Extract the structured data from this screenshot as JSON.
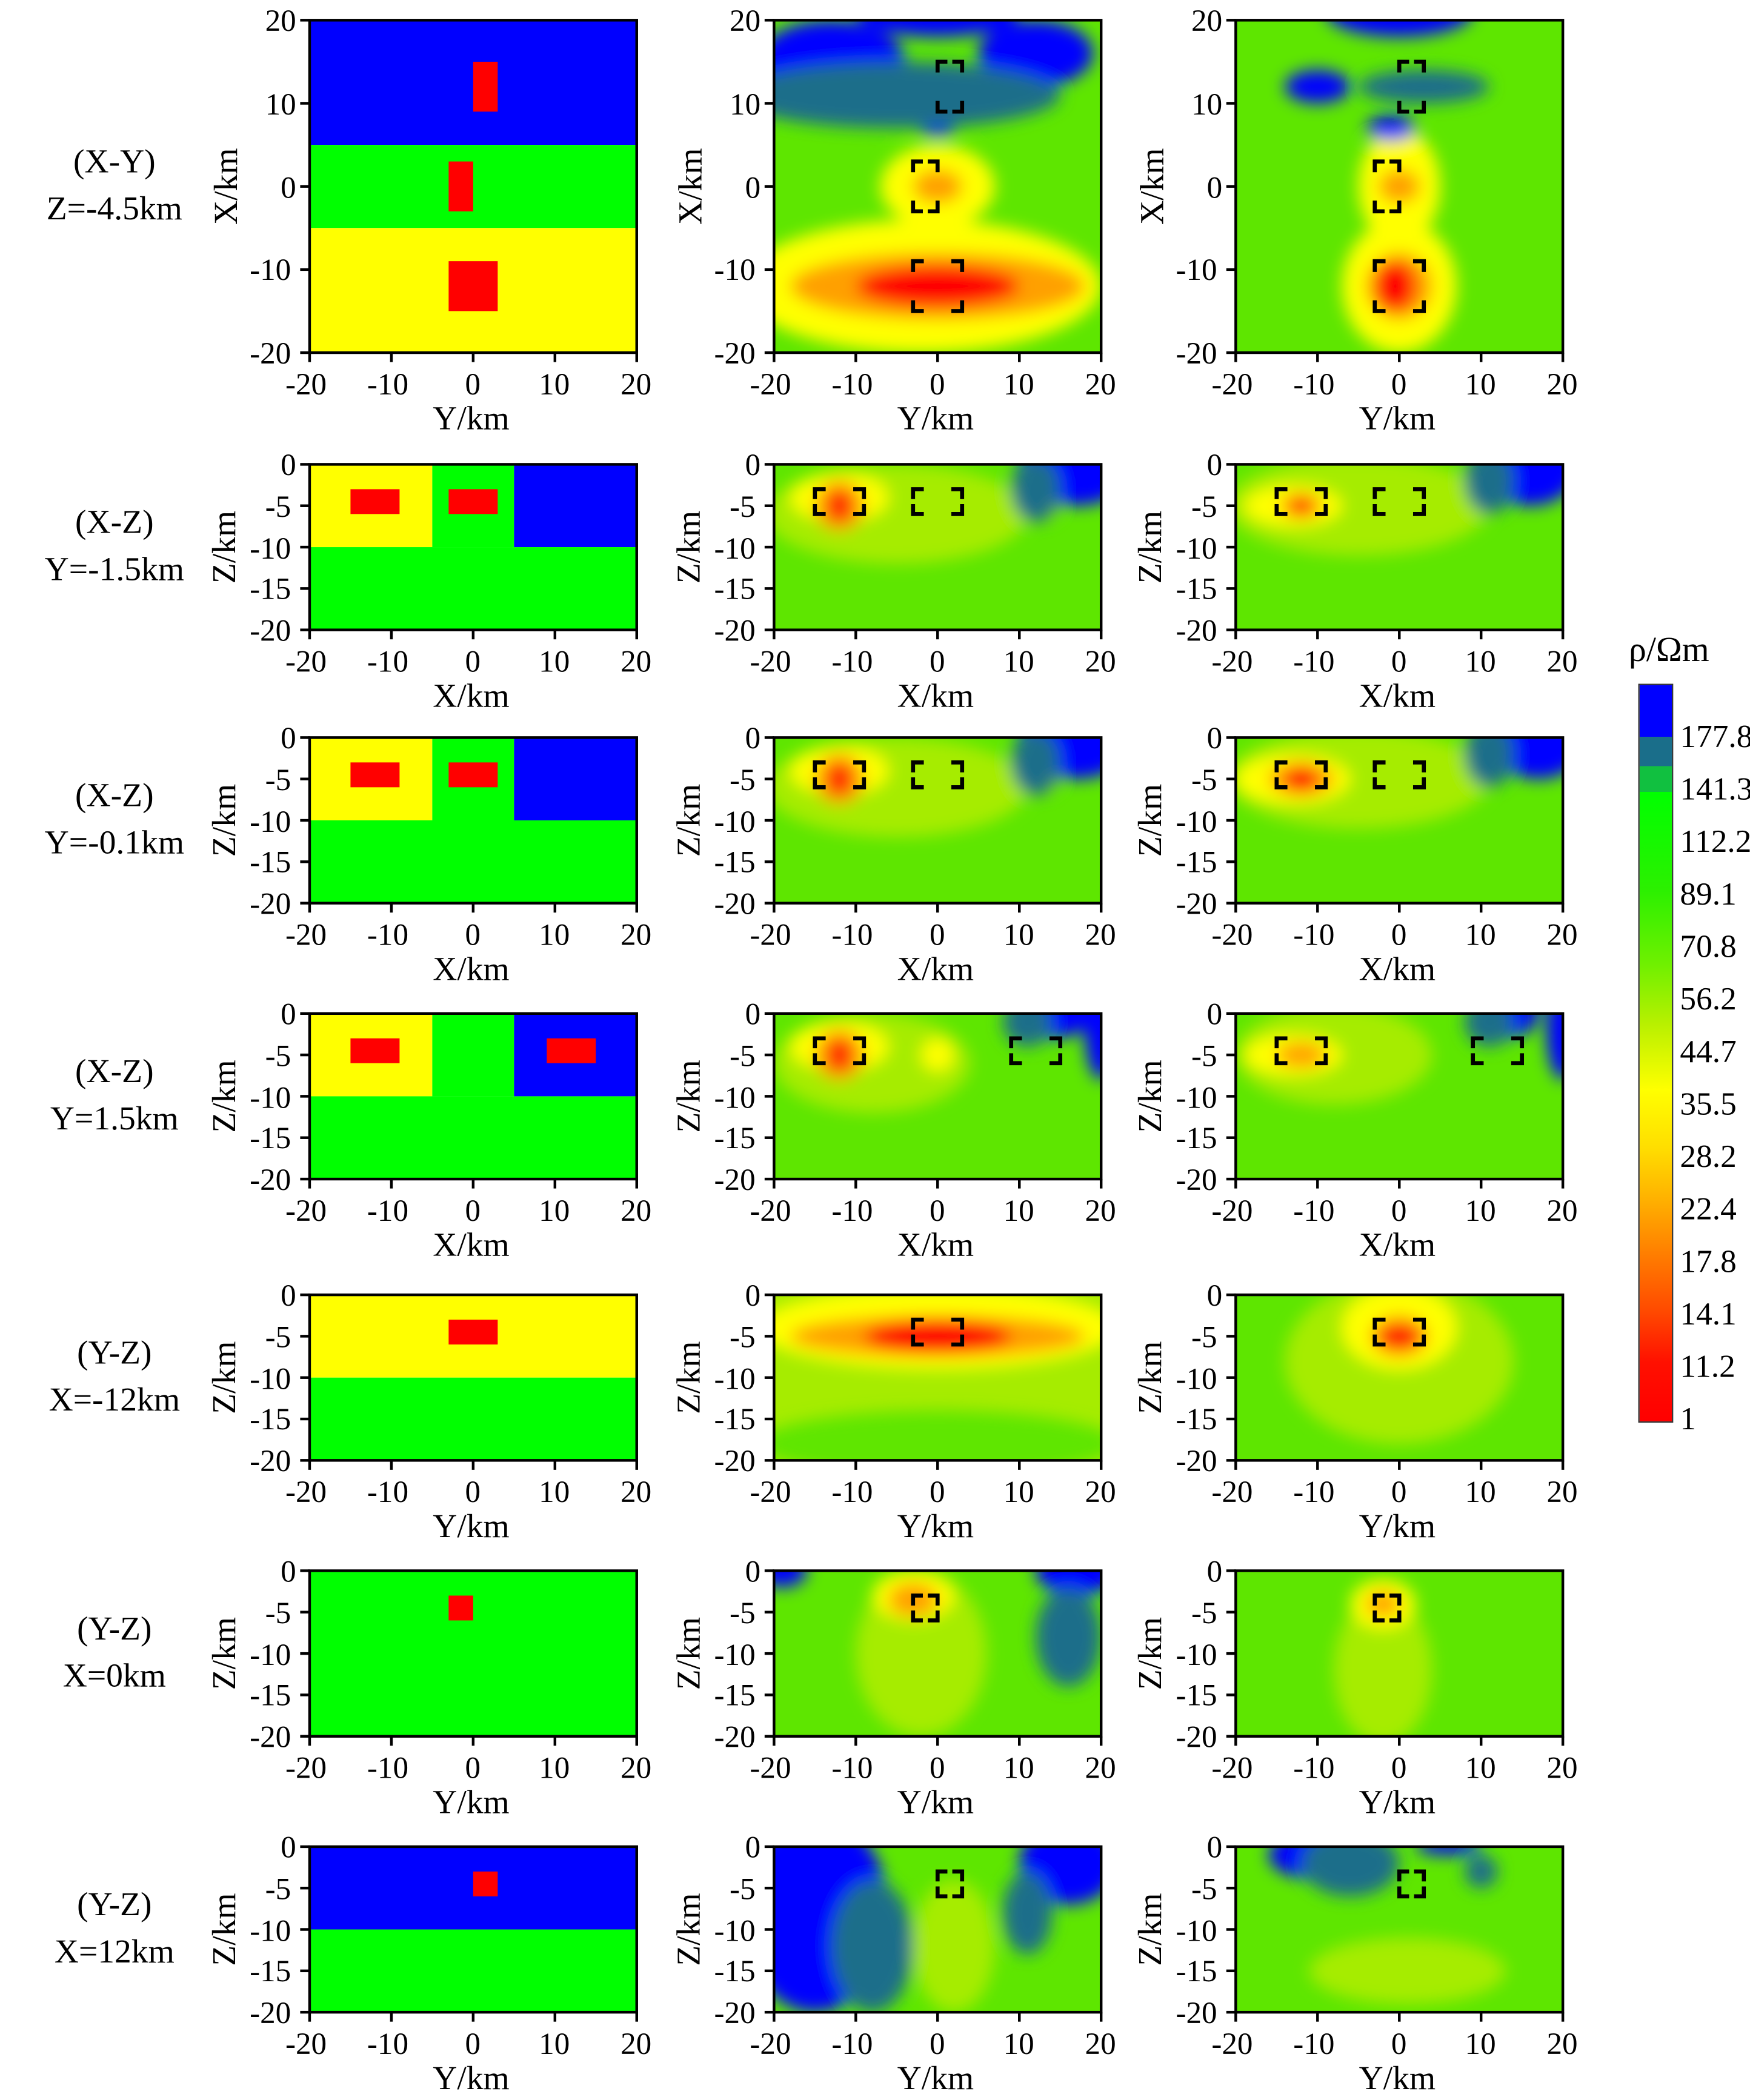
{
  "chart_data": {
    "type": "heatmap",
    "colorbar": {
      "title": "ρ/Ωm",
      "labels": [
        "177.8",
        "141.3",
        "112.2",
        "89.1",
        "70.8",
        "56.2",
        "44.7",
        "35.5",
        "28.2",
        "22.4",
        "17.8",
        "14.1",
        "11.2",
        "1"
      ]
    },
    "colors": {
      "blue": "#0000ff",
      "teal": "#1a6e8a",
      "green": "#00ff00",
      "invgreen": "#5ee600",
      "ygreen": "#a6ec00",
      "yellow": "#ffff00",
      "orange": "#ffa000",
      "red": "#ff0000"
    },
    "xticks": [
      "-20",
      "-10",
      "0",
      "10",
      "20"
    ],
    "yticks_plan": [
      "20",
      "10",
      "0",
      "-10",
      "-20"
    ],
    "yticks_depth": [
      "0",
      "-5",
      "-10",
      "-15",
      "-20"
    ],
    "rows": [
      {
        "label1": "(X-Y)",
        "label2": "Z=-4.5km",
        "kind": "plan",
        "xlabel": "Y/km",
        "ylabel": "X/km",
        "model": {
          "layers": [
            [
              "blue",
              5,
              20
            ],
            [
              "green",
              -5,
              5
            ],
            [
              "yellow",
              -20,
              -5
            ]
          ],
          "blocks": [
            [
              0,
              3,
              9,
              15
            ],
            [
              -3,
              0,
              -3,
              3
            ],
            [
              -3,
              3,
              -15,
              -9
            ]
          ]
        },
        "anomalies": [
          [
            0,
            3,
            9,
            15
          ],
          [
            -3,
            0,
            -3,
            3
          ],
          [
            -3,
            3,
            -15,
            -9
          ]
        ],
        "inv1": {
          "bg": "invgreen",
          "blobs": [
            [
              "yellow",
              -2,
              -12,
              22,
              8
            ],
            [
              "orange",
              0,
              -12,
              18,
              4
            ],
            [
              "red",
              0,
              -12,
              10,
              2.5
            ],
            [
              "yellow",
              0,
              0,
              7,
              5
            ],
            [
              "orange",
              0,
              0,
              3,
              2
            ],
            [
              "blue",
              -13,
              15,
              9,
              5
            ],
            [
              "blue",
              12,
              16,
              7,
              4
            ],
            [
              "blue",
              0,
              21,
              10,
              3
            ],
            [
              "blue",
              0,
              7,
              2,
              1
            ],
            [
              "teal",
              -5,
              11,
              20,
              4
            ]
          ]
        },
        "inv2": {
          "bg": "invgreen",
          "blobs": [
            [
              "yellow",
              0,
              -12,
              7,
              8
            ],
            [
              "yellow",
              0,
              0,
              5,
              7
            ],
            [
              "orange",
              0,
              -12,
              4,
              4
            ],
            [
              "red",
              -0.5,
              -12,
              2.5,
              3
            ],
            [
              "orange",
              0,
              0,
              2.5,
              2
            ],
            [
              "blue",
              0,
              21,
              9,
              3
            ],
            [
              "blue",
              -10,
              12,
              4,
              2
            ],
            [
              "blue",
              -1,
              7,
              3,
              1.5
            ],
            [
              "teal",
              3,
              12,
              8,
              2
            ]
          ]
        }
      },
      {
        "label1": "(X-Z)",
        "label2": "Y=-1.5km",
        "kind": "depth",
        "xlabel": "X/km",
        "ylabel": "Z/km",
        "model": {
          "layers": [
            [
              "yellow",
              -20,
              -5,
              0,
              -10
            ],
            [
              "green",
              -5,
              5,
              0,
              -10
            ],
            [
              "blue",
              5,
              20,
              0,
              -10
            ],
            [
              "green",
              -20,
              20,
              -10,
              -20
            ]
          ],
          "blocks": [
            [
              -15,
              -9,
              -3,
              -6
            ],
            [
              -3,
              3,
              -3,
              -6
            ]
          ]
        },
        "anomalies": [
          [
            -15,
            -9,
            -3,
            -6
          ],
          [
            -3,
            3,
            -3,
            -6
          ]
        ],
        "inv1": {
          "bg": "invgreen",
          "blobs": [
            [
              "ygreen",
              -5,
              -6,
              16,
              6
            ],
            [
              "yellow",
              -12,
              -4,
              6,
              3
            ],
            [
              "orange",
              -12,
              -5,
              3,
              3
            ],
            [
              "red",
              -12,
              -5,
              1.5,
              2
            ],
            [
              "ygreen",
              12,
              -4,
              3,
              3
            ],
            [
              "blue",
              17,
              0,
              7,
              5
            ],
            [
              "teal",
              12,
              -3,
              3,
              4
            ]
          ]
        },
        "inv2": {
          "bg": "invgreen",
          "blobs": [
            [
              "ygreen",
              -5,
              -5,
              16,
              6
            ],
            [
              "yellow",
              -13,
              -5,
              6,
              2.5
            ],
            [
              "orange",
              -12,
              -5,
              2.5,
              1.5
            ],
            [
              "red",
              -12,
              -5,
              1.5,
              1
            ],
            [
              "blue",
              16,
              0,
              6,
              5
            ],
            [
              "teal",
              11,
              -2,
              3,
              4
            ]
          ]
        }
      },
      {
        "label1": "(X-Z)",
        "label2": "Y=-0.1km",
        "kind": "depth",
        "xlabel": "X/km",
        "ylabel": "Z/km",
        "model": {
          "layers": [
            [
              "yellow",
              -20,
              -5,
              0,
              -10
            ],
            [
              "green",
              -5,
              5,
              0,
              -10
            ],
            [
              "blue",
              5,
              20,
              0,
              -10
            ],
            [
              "green",
              -20,
              20,
              -10,
              -20
            ]
          ],
          "blocks": [
            [
              -15,
              -9,
              -3,
              -6
            ],
            [
              -3,
              3,
              -3,
              -6
            ]
          ]
        },
        "anomalies": [
          [
            -15,
            -9,
            -3,
            -6
          ],
          [
            -3,
            3,
            -3,
            -6
          ]
        ],
        "inv1": {
          "bg": "invgreen",
          "blobs": [
            [
              "ygreen",
              -5,
              -6,
              16,
              6
            ],
            [
              "yellow",
              -12,
              -4,
              6,
              3
            ],
            [
              "orange",
              -12,
              -5,
              3,
              3
            ],
            [
              "red",
              -12,
              -5,
              1.5,
              2
            ],
            [
              "ygreen",
              12,
              -4,
              3,
              3
            ],
            [
              "blue",
              17,
              0,
              7,
              5
            ],
            [
              "teal",
              12,
              -3,
              3,
              4
            ]
          ]
        },
        "inv2": {
          "bg": "invgreen",
          "blobs": [
            [
              "ygreen",
              -5,
              -5,
              16,
              6
            ],
            [
              "yellow",
              -13,
              -5,
              7,
              3
            ],
            [
              "orange",
              -12,
              -5,
              4,
              2
            ],
            [
              "red",
              -12,
              -5,
              2,
              1.5
            ],
            [
              "blue",
              17,
              0,
              6,
              5
            ],
            [
              "teal",
              11,
              -2,
              3,
              4
            ]
          ]
        }
      },
      {
        "label1": "(X-Z)",
        "label2": "Y=1.5km",
        "kind": "depth",
        "xlabel": "X/km",
        "ylabel": "Z/km",
        "model": {
          "layers": [
            [
              "yellow",
              -20,
              -5,
              0,
              -10
            ],
            [
              "green",
              -5,
              5,
              0,
              -10
            ],
            [
              "blue",
              5,
              20,
              0,
              -10
            ],
            [
              "green",
              -20,
              20,
              -10,
              -20
            ]
          ],
          "blocks": [
            [
              -15,
              -9,
              -3,
              -6
            ],
            [
              9,
              15,
              -3,
              -6
            ]
          ]
        },
        "anomalies": [
          [
            -15,
            -9,
            -3,
            -6
          ],
          [
            9,
            15,
            -3,
            -6
          ]
        ],
        "inv1": {
          "bg": "invgreen",
          "blobs": [
            [
              "ygreen",
              -8,
              -6,
              12,
              6
            ],
            [
              "yellow",
              -12,
              -4,
              6,
              3
            ],
            [
              "orange",
              -12,
              -5,
              3,
              3
            ],
            [
              "red",
              -12,
              -5,
              1.5,
              2
            ],
            [
              "yellow",
              0,
              -5,
              2,
              2
            ],
            [
              "blue",
              14,
              0,
              5,
              3
            ],
            [
              "blue",
              20,
              -2,
              2,
              6
            ],
            [
              "teal",
              11,
              -1,
              3,
              3
            ]
          ]
        },
        "inv2": {
          "bg": "invgreen",
          "blobs": [
            [
              "ygreen",
              -8,
              -5,
              12,
              6
            ],
            [
              "yellow",
              -13,
              -5,
              6,
              2.5
            ],
            [
              "orange",
              -12,
              -5,
              3,
              1.5
            ],
            [
              "blue",
              13,
              0,
              4,
              3
            ],
            [
              "blue",
              20,
              -2,
              2,
              6
            ],
            [
              "teal",
              11,
              -1,
              3,
              3
            ]
          ]
        }
      },
      {
        "label1": "(Y-Z)",
        "label2": "X=-12km",
        "kind": "depth",
        "xlabel": "Y/km",
        "ylabel": "Z/km",
        "model": {
          "layers": [
            [
              "yellow",
              -20,
              20,
              0,
              -10
            ],
            [
              "green",
              -20,
              20,
              -10,
              -20
            ]
          ],
          "blocks": [
            [
              -3,
              3,
              -3,
              -6
            ]
          ]
        },
        "anomalies": [
          [
            -3,
            3,
            -3,
            -6
          ]
        ],
        "inv1": {
          "bg": "ygreen",
          "blobs": [
            [
              "yellow",
              0,
              -4,
              22,
              5
            ],
            [
              "orange",
              0,
              -5,
              18,
              2.5
            ],
            [
              "red",
              0,
              -5,
              9,
              2
            ],
            [
              "invgreen",
              0,
              -18,
              22,
              4
            ]
          ]
        },
        "inv2": {
          "bg": "invgreen",
          "blobs": [
            [
              "ygreen",
              0,
              -8,
              14,
              10
            ],
            [
              "yellow",
              0,
              -4,
              7,
              5
            ],
            [
              "orange",
              0,
              -5,
              3.5,
              2.5
            ],
            [
              "red",
              0,
              -5,
              2.5,
              1.5
            ]
          ]
        }
      },
      {
        "label1": "(Y-Z)",
        "label2": "X=0km",
        "kind": "depth",
        "xlabel": "Y/km",
        "ylabel": "Z/km",
        "model": {
          "layers": [
            [
              "green",
              -20,
              20,
              0,
              -20
            ]
          ],
          "blocks": [
            [
              -3,
              0,
              -3,
              -6
            ]
          ]
        },
        "anomalies": [
          [
            -3,
            0,
            -3,
            -6
          ]
        ],
        "inv1": {
          "bg": "invgreen",
          "blobs": [
            [
              "ygreen",
              -2,
              -10,
              8,
              10
            ],
            [
              "yellow",
              -3,
              -3,
              5,
              3
            ],
            [
              "orange",
              -3,
              -3.5,
              3,
              2
            ],
            [
              "blue",
              -19,
              0,
              3,
              2
            ],
            [
              "blue",
              17,
              0,
              5,
              3
            ],
            [
              "teal",
              16,
              -8,
              4,
              6
            ]
          ]
        },
        "inv2": {
          "bg": "invgreen",
          "blobs": [
            [
              "ygreen",
              -2,
              -12,
              6,
              9
            ],
            [
              "yellow",
              -2,
              -4,
              4,
              3
            ],
            [
              "orange",
              -2,
              -4,
              2,
              1.5
            ]
          ]
        }
      },
      {
        "label1": "(Y-Z)",
        "label2": "X=12km",
        "kind": "depth",
        "xlabel": "Y/km",
        "ylabel": "Z/km",
        "model": {
          "layers": [
            [
              "blue",
              -20,
              20,
              0,
              -10
            ],
            [
              "green",
              -20,
              20,
              -10,
              -20
            ]
          ],
          "blocks": [
            [
              0,
              3,
              -3,
              -6
            ]
          ]
        },
        "anomalies": [
          [
            0,
            3,
            -3,
            -6
          ]
        ],
        "inv1": {
          "bg": "invgreen",
          "blobs": [
            [
              "blue",
              -15,
              -8,
              9,
              12
            ],
            [
              "blue",
              16,
              -2,
              6,
              5
            ],
            [
              "teal",
              -8,
              -12,
              5,
              8
            ],
            [
              "teal",
              11,
              -8,
              3,
              5
            ],
            [
              "ygreen",
              2,
              -12,
              5,
              8
            ]
          ]
        },
        "inv2": {
          "bg": "invgreen",
          "blobs": [
            [
              "blue",
              -10,
              -1,
              6,
              3
            ],
            [
              "blue",
              6,
              0,
              4,
              1
            ],
            [
              "teal",
              -6,
              -2,
              6,
              4
            ],
            [
              "ygreen",
              1,
              -15,
              12,
              4
            ],
            [
              "teal",
              10,
              -3,
              2,
              2
            ]
          ]
        }
      }
    ]
  }
}
